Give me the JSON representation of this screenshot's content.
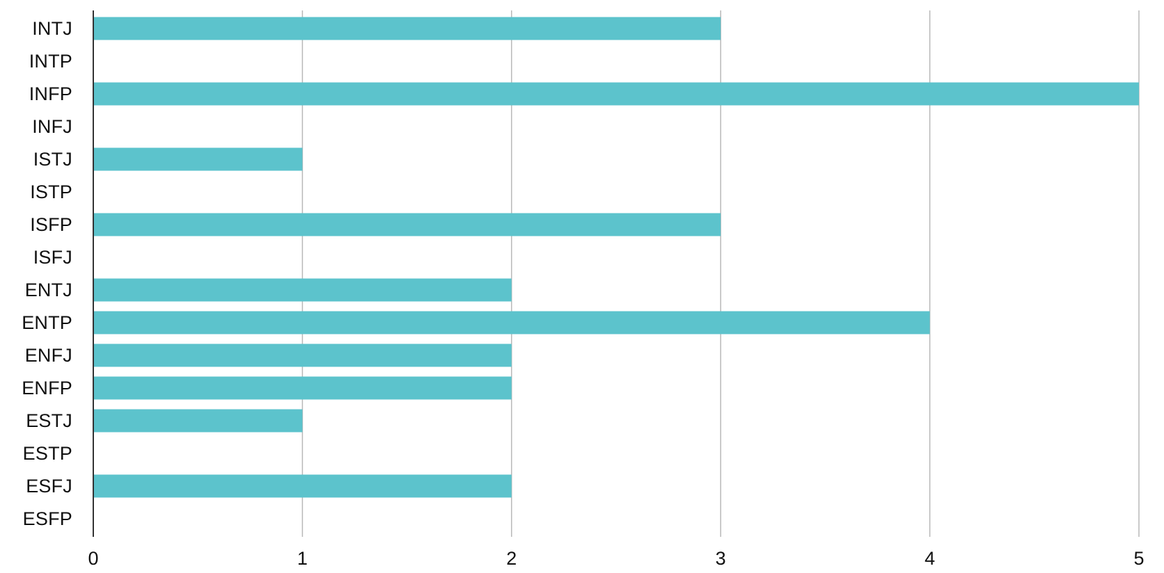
{
  "colors": {
    "bar": "#5cc3cc",
    "grid": "#b8b8b8",
    "axis": "#333333",
    "text": "#111111"
  },
  "chart_data": {
    "type": "bar",
    "orientation": "horizontal",
    "categories": [
      "INTJ",
      "INTP",
      "INFP",
      "INFJ",
      "ISTJ",
      "ISTP",
      "ISFP",
      "ISFJ",
      "ENTJ",
      "ENTP",
      "ENFJ",
      "ENFP",
      "ESTJ",
      "ESTP",
      "ESFJ",
      "ESFP"
    ],
    "values": [
      3,
      0,
      5,
      0,
      1,
      0,
      3,
      0,
      2,
      4,
      2,
      2,
      1,
      0,
      2,
      0
    ],
    "xlim": [
      0,
      5
    ],
    "xticks": [
      "0",
      "1",
      "2",
      "3",
      "4",
      "5"
    ],
    "grid": "vertical",
    "legend": "none"
  }
}
